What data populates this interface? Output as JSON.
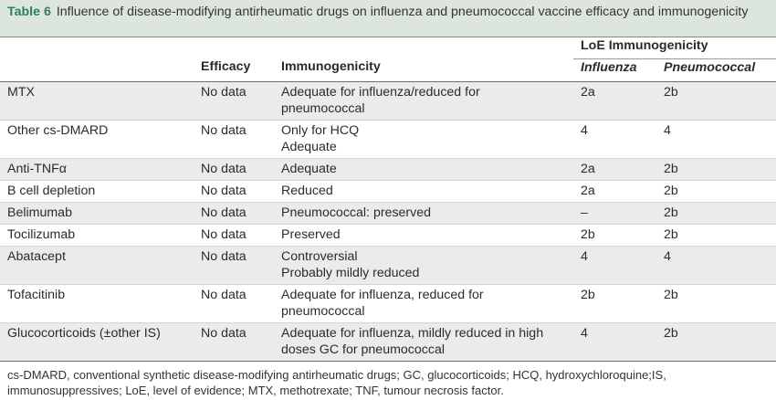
{
  "caption": {
    "label": "Table 6",
    "text": "Influence of disease-modifying antirheumatic drugs on influenza and pneumococcal vaccine efficacy and immunogenicity"
  },
  "header": {
    "loe_group": "LoE Immunogenicity",
    "efficacy": "Efficacy",
    "immunogenicity": "Immunogenicity",
    "influenza": "Influenza",
    "pneumococcal": "Pneumococcal"
  },
  "rows": [
    {
      "drug": "MTX",
      "efficacy": "No data",
      "immuno1": "Adequate for influenza/reduced for",
      "immuno2": "pneumococcal",
      "influenza": "2a",
      "pneumococcal": "2b"
    },
    {
      "drug": "Other cs-DMARD",
      "efficacy": "No data",
      "immuno1": "Only for HCQ",
      "immuno2": "Adequate",
      "influenza": "4",
      "pneumococcal": "4"
    },
    {
      "drug": "Anti-TNFα",
      "efficacy": "No data",
      "immuno1": "Adequate",
      "immuno2": "",
      "influenza": "2a",
      "pneumococcal": "2b"
    },
    {
      "drug": "B cell depletion",
      "efficacy": "No data",
      "immuno1": "Reduced",
      "immuno2": "",
      "influenza": "2a",
      "pneumococcal": "2b"
    },
    {
      "drug": "Belimumab",
      "efficacy": "No data",
      "immuno1": "Pneumococcal: preserved",
      "immuno2": "",
      "influenza": "–",
      "pneumococcal": "2b"
    },
    {
      "drug": "Tocilizumab",
      "efficacy": "No data",
      "immuno1": "Preserved",
      "immuno2": "",
      "influenza": "2b",
      "pneumococcal": "2b"
    },
    {
      "drug": "Abatacept",
      "efficacy": "No data",
      "immuno1": "Controversial",
      "immuno2": "Probably mildly reduced",
      "influenza": "4",
      "pneumococcal": "4"
    },
    {
      "drug": "Tofacitinib",
      "efficacy": "No data",
      "immuno1": "Adequate for influenza, reduced for",
      "immuno2": "pneumococcal",
      "influenza": "2b",
      "pneumococcal": "2b"
    },
    {
      "drug": "Glucocorticoids (±other IS)",
      "efficacy": "No data",
      "immuno1": "Adequate for influenza, mildly reduced in high",
      "immuno2": "doses GC for pneumococcal",
      "influenza": "4",
      "pneumococcal": "2b"
    }
  ],
  "footnote": {
    "line1": "cs-DMARD, conventional synthetic disease-modifying antirheumatic drugs; GC, glucocorticoids; HCQ, hydroxychloroquine;IS,",
    "line2": "immunosuppressives; LoE, level of evidence; MTX, methotrexate; TNF, tumour necrosis factor."
  },
  "colors": {
    "caption_bg": "#dde5df",
    "caption_label": "#2f7d5c",
    "row_shade": "#e9ecea"
  }
}
